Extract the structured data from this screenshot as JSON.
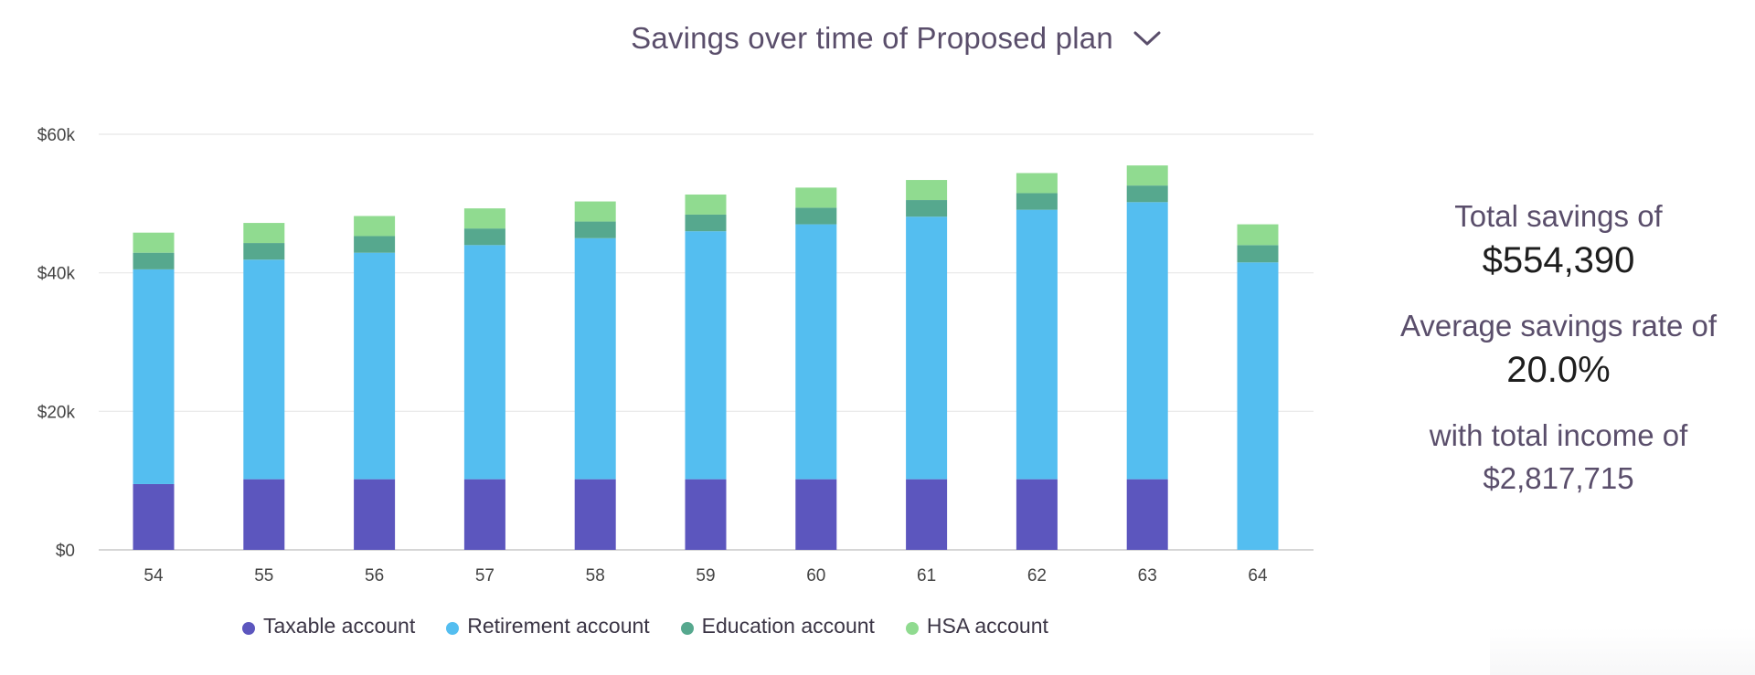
{
  "header": {
    "title": "Savings over time of Proposed plan",
    "dropdown_icon": "chevron-down-icon"
  },
  "colors": {
    "title_text": "#5a4e6b",
    "taxable": "#5c56be",
    "retirement": "#54bef0",
    "education": "#56a88e",
    "hsa": "#90db90",
    "grid": "#e8e8e8",
    "axis": "#d6d6d6"
  },
  "chart_data": {
    "type": "bar",
    "stacked": true,
    "categories": [
      "54",
      "55",
      "56",
      "57",
      "58",
      "59",
      "60",
      "61",
      "62",
      "63",
      "64"
    ],
    "series": [
      {
        "name": "Taxable account",
        "color": "#5c56be",
        "values": [
          9500,
          10200,
          10200,
          10200,
          10200,
          10200,
          10200,
          10200,
          10200,
          10200,
          0
        ]
      },
      {
        "name": "Retirement account",
        "color": "#54bef0",
        "values": [
          31000,
          31700,
          32700,
          33800,
          34800,
          35800,
          36800,
          37900,
          38900,
          40000,
          41500
        ]
      },
      {
        "name": "Education account",
        "color": "#56a88e",
        "values": [
          2400,
          2400,
          2400,
          2400,
          2400,
          2400,
          2400,
          2400,
          2400,
          2400,
          2500
        ]
      },
      {
        "name": "HSA account",
        "color": "#90db90",
        "values": [
          2900,
          2900,
          2900,
          2900,
          2900,
          2900,
          2900,
          2900,
          2900,
          2900,
          3000
        ]
      }
    ],
    "y_ticks": [
      "$0",
      "$20k",
      "$40k",
      "$60k"
    ],
    "y_tick_values": [
      0,
      20000,
      40000,
      60000
    ],
    "ylim": [
      0,
      60000
    ],
    "grid": true,
    "legend_position": "bottom"
  },
  "summary": {
    "total_label": "Total savings of",
    "total_value": "$554,390",
    "rate_label": "Average savings rate of",
    "rate_value": "20.0%",
    "income_label": "with total income of",
    "income_value": "$2,817,715"
  }
}
